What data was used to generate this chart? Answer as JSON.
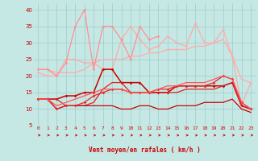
{
  "background_color": "#c5e8e5",
  "grid_color": "#9dccc8",
  "xlabel": "Vent moyen/en rafales ( km/h )",
  "ylim": [
    5,
    42
  ],
  "yticks": [
    5,
    10,
    15,
    20,
    25,
    30,
    35,
    40
  ],
  "lines": [
    {
      "y": [
        22,
        22,
        21,
        21,
        21,
        22,
        24,
        25,
        25,
        25,
        26,
        26,
        27,
        27,
        28,
        28,
        28,
        29,
        29,
        30,
        31,
        26,
        19,
        18
      ],
      "color": "#ffaaaa",
      "lw": 0.9,
      "marker": null
    },
    {
      "y": [
        21,
        20,
        20,
        25,
        25,
        24,
        24,
        22,
        22,
        31,
        35,
        31,
        28,
        29,
        32,
        30,
        29,
        36,
        30,
        30,
        34,
        26,
        11,
        18
      ],
      "color": "#ffaaaa",
      "lw": 0.9,
      "marker": "D",
      "ms": 1.8
    },
    {
      "y": [
        22,
        22,
        20,
        24,
        35,
        40,
        22,
        35,
        35,
        31,
        25,
        35,
        31,
        32,
        null,
        null,
        null,
        null,
        null,
        null,
        null,
        null,
        null,
        null
      ],
      "color": "#ff9090",
      "lw": 0.9,
      "marker": "D",
      "ms": 1.8
    },
    {
      "y": [
        13,
        13,
        13,
        14,
        14,
        15,
        15,
        22,
        22,
        18,
        18,
        18,
        15,
        15,
        15,
        17,
        17,
        17,
        17,
        17,
        17,
        18,
        11,
        10
      ],
      "color": "#cc0000",
      "lw": 1.1,
      "marker": "D",
      "ms": 1.8
    },
    {
      "y": [
        13,
        13,
        13,
        11,
        11,
        11,
        12,
        16,
        18,
        18,
        15,
        15,
        15,
        15,
        15,
        15,
        16,
        16,
        16,
        16,
        17,
        18,
        11,
        10
      ],
      "color": "#dd2222",
      "lw": 0.9,
      "marker": null
    },
    {
      "y": [
        13,
        13,
        10,
        11,
        11,
        11,
        11,
        11,
        11,
        10,
        10,
        11,
        11,
        10,
        10,
        11,
        11,
        11,
        12,
        12,
        12,
        13,
        10,
        9
      ],
      "color": "#cc0000",
      "lw": 0.9,
      "marker": null
    },
    {
      "y": [
        13,
        13,
        10,
        11,
        11,
        12,
        14,
        15,
        16,
        16,
        15,
        15,
        15,
        16,
        16,
        17,
        17,
        17,
        17,
        18,
        20,
        19,
        12,
        10
      ],
      "color": "#ee2222",
      "lw": 0.9,
      "marker": "D",
      "ms": 1.8
    },
    {
      "y": [
        13,
        13,
        11,
        12,
        13,
        14,
        15,
        16,
        16,
        16,
        15,
        15,
        15,
        16,
        17,
        17,
        18,
        18,
        18,
        19,
        20,
        19,
        12,
        10
      ],
      "color": "#ff5555",
      "lw": 0.9,
      "marker": null
    }
  ],
  "arrow_color": "#cc0000",
  "tick_color": "#cc0000",
  "label_color": "#cc0000",
  "tick_fontsize": 4.5,
  "label_fontsize": 5.5
}
